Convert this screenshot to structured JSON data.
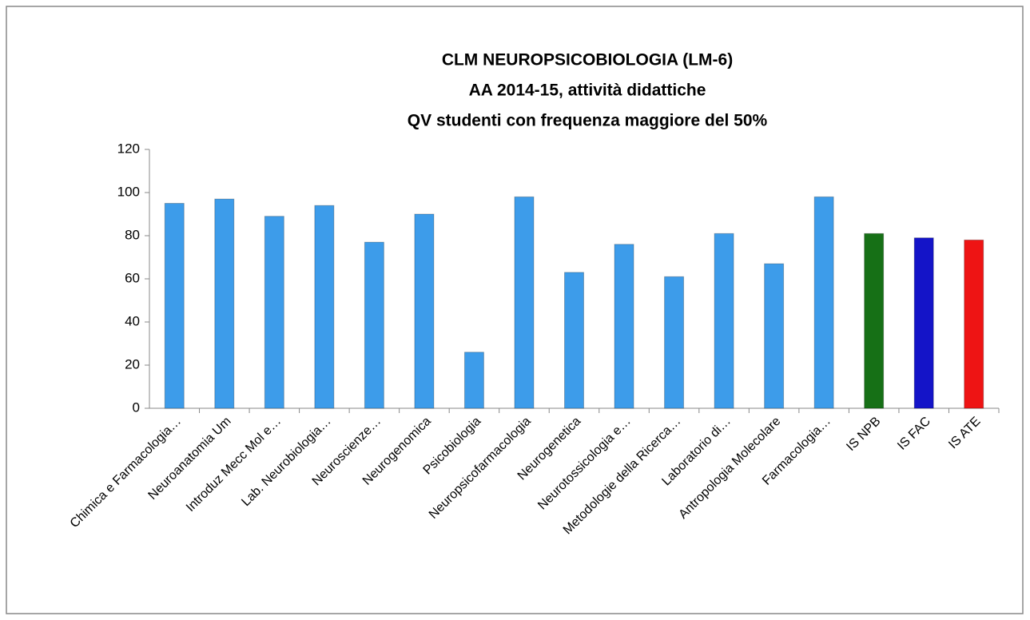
{
  "chart_data": {
    "type": "bar",
    "title": [
      "CLM NEUROPSICOBIOLOGIA  (LM-6)",
      "AA 2014-15, attività didattiche",
      "QV studenti con frequenza maggiore del  50%"
    ],
    "categories": [
      "Chimica e Farmacologia…",
      "Neuroanatomia Um",
      "Introduz Mecc Mol e…",
      "Lab. Neurobiologia…",
      "Neuroscienze…",
      "Neurogenomica",
      "Psicobiologia",
      "Neuropsicofarmacologia",
      "Neurogenetica",
      "Neurotossicologia e…",
      "Metodologie della Ricerca…",
      "Laboratorio di…",
      "Antropologia Molecolare",
      "Farmacologia…",
      "IS NPB",
      "IS FAC",
      "IS ATE"
    ],
    "values": [
      95,
      97,
      89,
      94,
      77,
      90,
      26,
      98,
      63,
      76,
      61,
      81,
      67,
      98,
      81,
      79,
      78
    ],
    "colors": [
      "#3d9cea",
      "#3d9cea",
      "#3d9cea",
      "#3d9cea",
      "#3d9cea",
      "#3d9cea",
      "#3d9cea",
      "#3d9cea",
      "#3d9cea",
      "#3d9cea",
      "#3d9cea",
      "#3d9cea",
      "#3d9cea",
      "#3d9cea",
      "#167016",
      "#1414c8",
      "#ee1414"
    ],
    "ylim": [
      0,
      120
    ],
    "yticks": [
      0,
      20,
      40,
      60,
      80,
      100,
      120
    ]
  }
}
